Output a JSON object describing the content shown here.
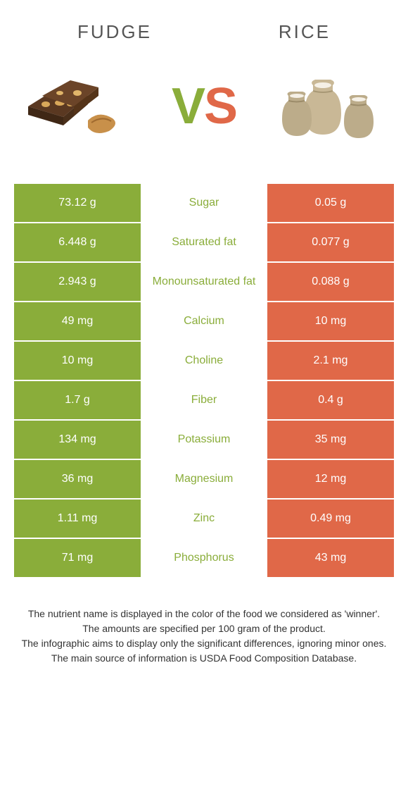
{
  "left_food": "Fudge",
  "right_food": "Rice",
  "colors": {
    "left": "#8aad3a",
    "right": "#e06848",
    "mid_bg": "#ffffff"
  },
  "vs": {
    "v": "V",
    "s": "S"
  },
  "rows": [
    {
      "left": "73.12 g",
      "label": "Sugar",
      "right": "0.05 g",
      "winner": "left"
    },
    {
      "left": "6.448 g",
      "label": "Saturated fat",
      "right": "0.077 g",
      "winner": "left"
    },
    {
      "left": "2.943 g",
      "label": "Monounsaturated fat",
      "right": "0.088 g",
      "winner": "left"
    },
    {
      "left": "49 mg",
      "label": "Calcium",
      "right": "10 mg",
      "winner": "left"
    },
    {
      "left": "10 mg",
      "label": "Choline",
      "right": "2.1 mg",
      "winner": "left"
    },
    {
      "left": "1.7 g",
      "label": "Fiber",
      "right": "0.4 g",
      "winner": "left"
    },
    {
      "left": "134 mg",
      "label": "Potassium",
      "right": "35 mg",
      "winner": "left"
    },
    {
      "left": "36 mg",
      "label": "Magnesium",
      "right": "12 mg",
      "winner": "left"
    },
    {
      "left": "1.11 mg",
      "label": "Zinc",
      "right": "0.49 mg",
      "winner": "left"
    },
    {
      "left": "71 mg",
      "label": "Phosphorus",
      "right": "43 mg",
      "winner": "left"
    }
  ],
  "footer": [
    "The nutrient name is displayed in the color of the food we considered as 'winner'.",
    "The amounts are specified per 100 gram of the product.",
    "The infographic aims to display only the significant differences, ignoring minor ones.",
    "The main source of information is USDA Food Composition Database."
  ]
}
